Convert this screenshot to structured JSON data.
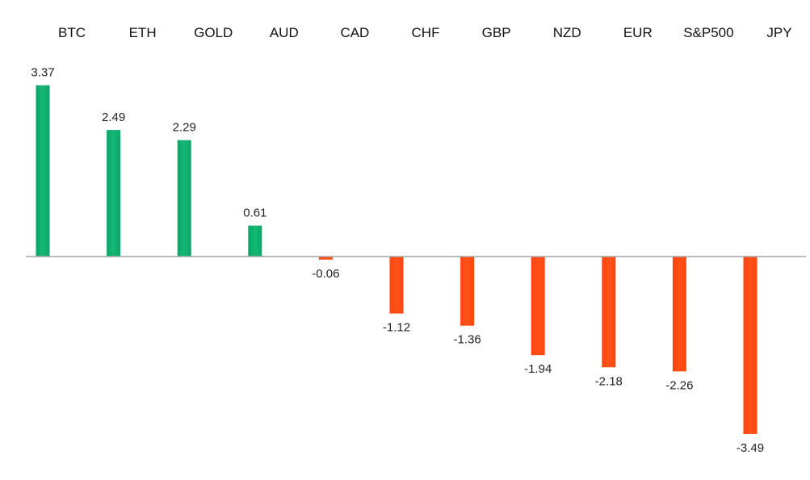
{
  "chart_data": {
    "type": "bar",
    "title": "",
    "xlabel": "",
    "ylabel": "",
    "categories": [
      "BTC",
      "ETH",
      "GOLD",
      "AUD",
      "CAD",
      "CHF",
      "GBP",
      "NZD",
      "EUR",
      "S&P500",
      "JPY"
    ],
    "values": [
      3.37,
      2.49,
      2.29,
      0.61,
      -0.06,
      -1.12,
      -1.36,
      -1.94,
      -2.18,
      -2.26,
      -3.49
    ],
    "value_labels": [
      "3.37",
      "2.49",
      "2.29",
      "0.61",
      "-0.06",
      "-1.12",
      "-1.36",
      "-1.94",
      "-2.18",
      "-2.26",
      "-3.49"
    ],
    "ylim": [
      -4,
      4
    ],
    "grid": false,
    "legend": "none",
    "category_label_position": "top",
    "colors": {
      "positive_top": "#00b070",
      "positive_bottom": "#20b878",
      "positive_edge": "#0d8f5a",
      "negative": "#ff4a12",
      "negative_edge": "#e03c0a",
      "axis": "#a6a6a6"
    }
  }
}
